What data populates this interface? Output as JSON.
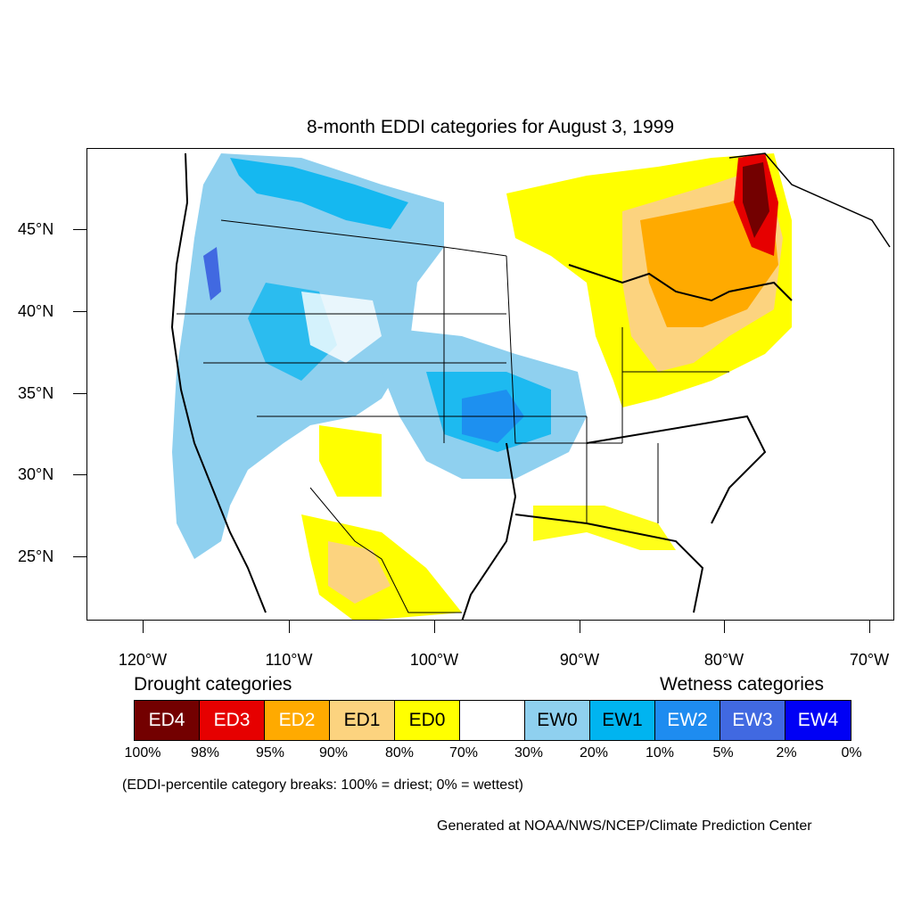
{
  "title": "8-month EDDI categories for August 3, 1999",
  "map": {
    "lat_labels": [
      "45°N",
      "40°N",
      "35°N",
      "30°N",
      "25°N"
    ],
    "lon_labels": [
      "120°W",
      "110°W",
      "100°W",
      "90°W",
      "80°W",
      "70°W"
    ]
  },
  "legend": {
    "drought_heading": "Drought categories",
    "wetness_heading": "Wetness categories",
    "categories": [
      {
        "label": "ED4",
        "color": "#730000",
        "text_color": "#ffffff"
      },
      {
        "label": "ED3",
        "color": "#e60000",
        "text_color": "#ffffff"
      },
      {
        "label": "ED2",
        "color": "#ffaa00",
        "text_color": "#ffffff"
      },
      {
        "label": "ED1",
        "color": "#fcd37f",
        "text_color": "#000000"
      },
      {
        "label": "ED0",
        "color": "#ffff00",
        "text_color": "#000000"
      },
      {
        "label": "",
        "color": "#ffffff",
        "text_color": "#000000"
      },
      {
        "label": "EW0",
        "color": "#8fd0ef",
        "text_color": "#000000"
      },
      {
        "label": "EW1",
        "color": "#00b4f0",
        "text_color": "#000000"
      },
      {
        "label": "EW2",
        "color": "#1e8cf0",
        "text_color": "#ffffff"
      },
      {
        "label": "EW3",
        "color": "#4169e1",
        "text_color": "#ffffff"
      },
      {
        "label": "EW4",
        "color": "#0000f5",
        "text_color": "#ffffff"
      }
    ],
    "breaks": [
      "100%",
      "98%",
      "95%",
      "90%",
      "80%",
      "70%",
      "30%",
      "20%",
      "10%",
      "5%",
      "2%",
      "0%"
    ]
  },
  "note": "(EDDI-percentile category breaks: 100% = driest; 0% = wettest)",
  "credit": "Generated at NOAA/NWS/NCEP/Climate Prediction Center"
}
